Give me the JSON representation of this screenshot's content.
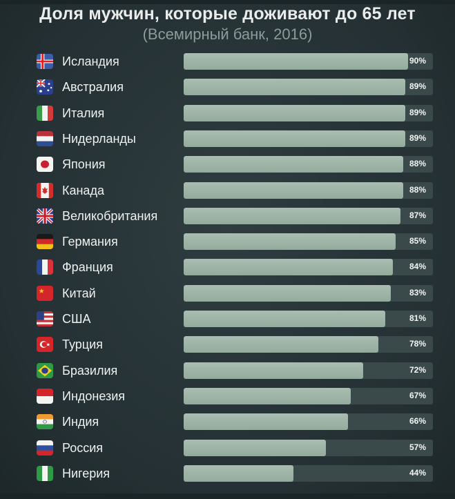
{
  "header": {
    "title": "Доля мужчин, которые доживают до 65 лет",
    "subtitle": "(Всемирный банк, 2016)"
  },
  "colors": {
    "background": "#2a3538",
    "bar_fill": "#a9bdb0",
    "bar_track": "#3a4a4b",
    "text": "#eef1f0"
  },
  "chart_data": {
    "type": "bar",
    "orientation": "horizontal",
    "title": "Доля мужчин, которые доживают до 65 лет",
    "subtitle": "(Всемирный банк, 2016)",
    "xlabel": "",
    "ylabel": "",
    "xlim": [
      0,
      100
    ],
    "categories": [
      "Исландия",
      "Австралия",
      "Италия",
      "Нидерланды",
      "Япония",
      "Канада",
      "Великобритания",
      "Германия",
      "Франция",
      "Китай",
      "США",
      "Турция",
      "Бразилия",
      "Индонезия",
      "Индия",
      "Россия",
      "Нигерия"
    ],
    "values": [
      90,
      89,
      89,
      89,
      88,
      88,
      87,
      85,
      84,
      83,
      81,
      78,
      72,
      67,
      66,
      57,
      44
    ],
    "value_labels": [
      "90%",
      "89%",
      "89%",
      "89%",
      "88%",
      "88%",
      "87%",
      "85%",
      "84%",
      "83%",
      "81%",
      "78%",
      "72%",
      "67%",
      "66%",
      "57%",
      "44%"
    ],
    "flag_icons": [
      "iceland-flag-icon",
      "australia-flag-icon",
      "italy-flag-icon",
      "netherlands-flag-icon",
      "japan-flag-icon",
      "canada-flag-icon",
      "uk-flag-icon",
      "germany-flag-icon",
      "france-flag-icon",
      "china-flag-icon",
      "usa-flag-icon",
      "turkey-flag-icon",
      "brazil-flag-icon",
      "indonesia-flag-icon",
      "india-flag-icon",
      "russia-flag-icon",
      "nigeria-flag-icon"
    ],
    "grid": false,
    "legend": "none"
  }
}
